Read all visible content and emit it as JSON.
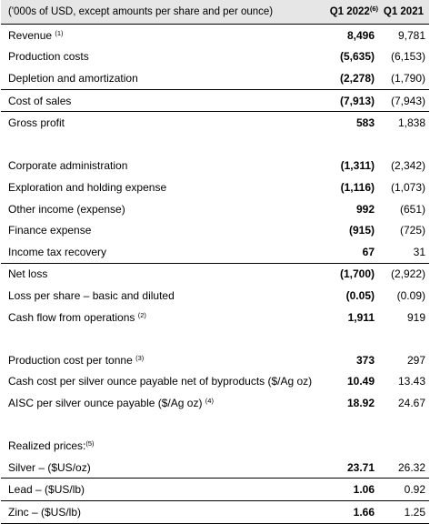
{
  "header": {
    "label": "('000s of USD, except amounts per share and per ounce)",
    "col1": "Q1 2022",
    "col1_sup": "(6)",
    "col2": "Q1 2021"
  },
  "rows": [
    {
      "label": "Revenue",
      "sup": "(1)",
      "q1_2022": "8,496",
      "q1_2021": "9,781"
    },
    {
      "label": "Production costs",
      "sup": "",
      "q1_2022": "(5,635)",
      "q1_2021": "(6,153)"
    },
    {
      "label": "Depletion and amortization",
      "sup": "",
      "q1_2022": "(2,278)",
      "q1_2021": "(1,790)"
    },
    {
      "label": "Cost of sales",
      "sup": "",
      "q1_2022": "(7,913)",
      "q1_2021": "(7,943)"
    },
    {
      "label": "Gross profit",
      "sup": "",
      "q1_2022": "583",
      "q1_2021": "1,838"
    },
    {
      "label": "Corporate administration",
      "sup": "",
      "q1_2022": "(1,311)",
      "q1_2021": "(2,342)"
    },
    {
      "label": "Exploration and holding expense",
      "sup": "",
      "q1_2022": "(1,116)",
      "q1_2021": "(1,073)"
    },
    {
      "label": "Other income (expense)",
      "sup": "",
      "q1_2022": "992",
      "q1_2021": "(651)"
    },
    {
      "label": "Finance expense",
      "sup": "",
      "q1_2022": "(915)",
      "q1_2021": "(725)"
    },
    {
      "label": "Income tax recovery",
      "sup": "",
      "q1_2022": "67",
      "q1_2021": "31"
    },
    {
      "label": "Net loss",
      "sup": "",
      "q1_2022": "(1,700)",
      "q1_2021": "(2,922)"
    },
    {
      "label": "Loss per share – basic and diluted",
      "sup": "",
      "q1_2022": "(0.05)",
      "q1_2021": "(0.09)"
    },
    {
      "label": "Cash flow from operations",
      "sup": "(2)",
      "q1_2022": "1,911",
      "q1_2021": "919"
    },
    {
      "label": "Production cost per tonne",
      "sup": "(3)",
      "q1_2022": "373",
      "q1_2021": "297"
    },
    {
      "label": "Cash cost per silver ounce payable net of byproducts ($/Ag oz)",
      "sup": "",
      "q1_2022": "10.49",
      "q1_2021": "13.43"
    },
    {
      "label": "AISC per silver ounce payable ($/Ag oz)",
      "sup": "(4)",
      "q1_2022": "18.92",
      "q1_2021": "24.67"
    },
    {
      "label": "Realized prices:",
      "sup": "(5)",
      "q1_2022": "",
      "q1_2021": ""
    },
    {
      "label": "Silver – ($US/oz)",
      "sup": "",
      "q1_2022": "23.71",
      "q1_2021": "26.32"
    },
    {
      "label": "Lead – ($US/lb)",
      "sup": "",
      "q1_2022": "1.06",
      "q1_2021": "0.92"
    },
    {
      "label": "Zinc – ($US/lb)",
      "sup": "",
      "q1_2022": "1.66",
      "q1_2021": "1.25"
    }
  ]
}
